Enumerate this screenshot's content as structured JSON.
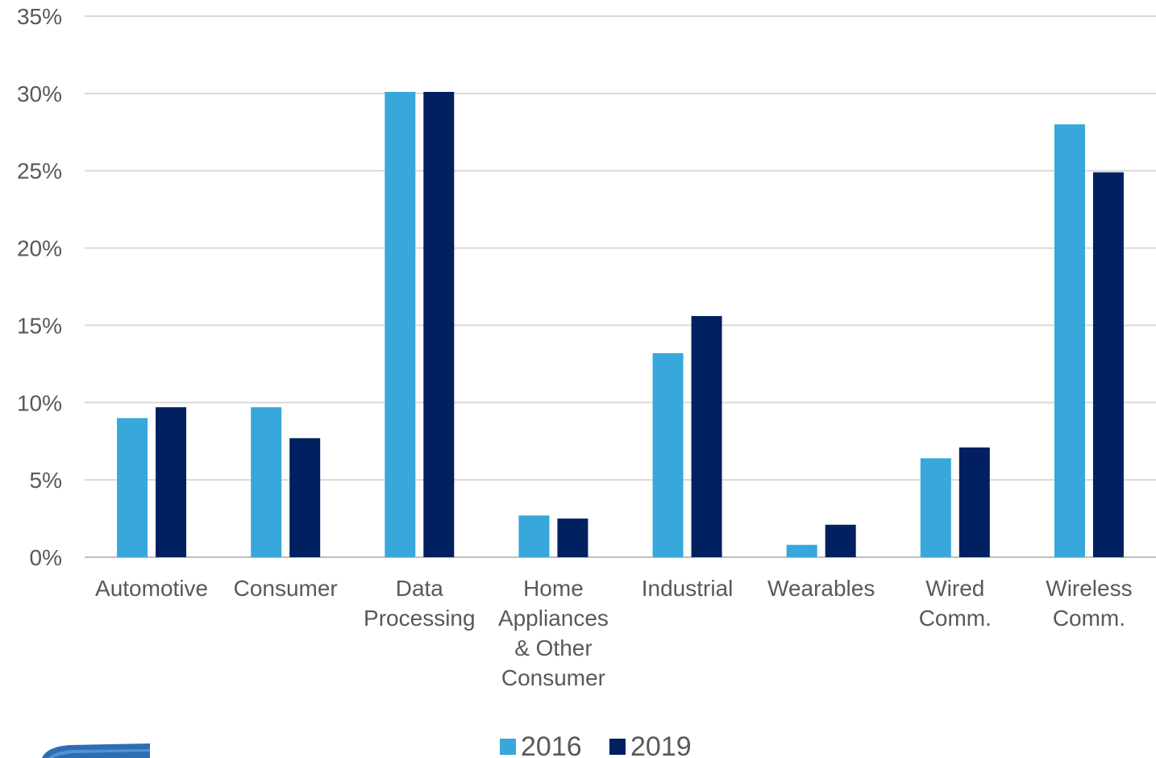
{
  "chart_data": {
    "type": "bar",
    "title": "",
    "xlabel": "",
    "ylabel": "",
    "ylim": [
      0,
      35
    ],
    "y_ticks": [
      "0%",
      "5%",
      "10%",
      "15%",
      "20%",
      "25%",
      "30%",
      "35%"
    ],
    "grid": true,
    "legend_position": "bottom",
    "categories": [
      [
        "Automotive"
      ],
      [
        "Consumer"
      ],
      [
        "Data",
        "Processing"
      ],
      [
        "Home",
        "Appliances",
        "& Other",
        "Consumer"
      ],
      [
        "Industrial"
      ],
      [
        "Wearables"
      ],
      [
        "Wired",
        "Comm."
      ],
      [
        "Wireless",
        "Comm."
      ]
    ],
    "series": [
      {
        "name": "2016",
        "color": "#38A7DB",
        "values": [
          9.0,
          9.7,
          30.1,
          2.7,
          13.2,
          0.8,
          6.4,
          28.0
        ]
      },
      {
        "name": "2019",
        "color": "#002060",
        "values": [
          9.7,
          7.7,
          30.1,
          2.5,
          15.6,
          2.1,
          7.1,
          24.9
        ]
      }
    ]
  },
  "logo": {
    "icon": "company-logo-icon",
    "color": "#2E6DB4"
  }
}
